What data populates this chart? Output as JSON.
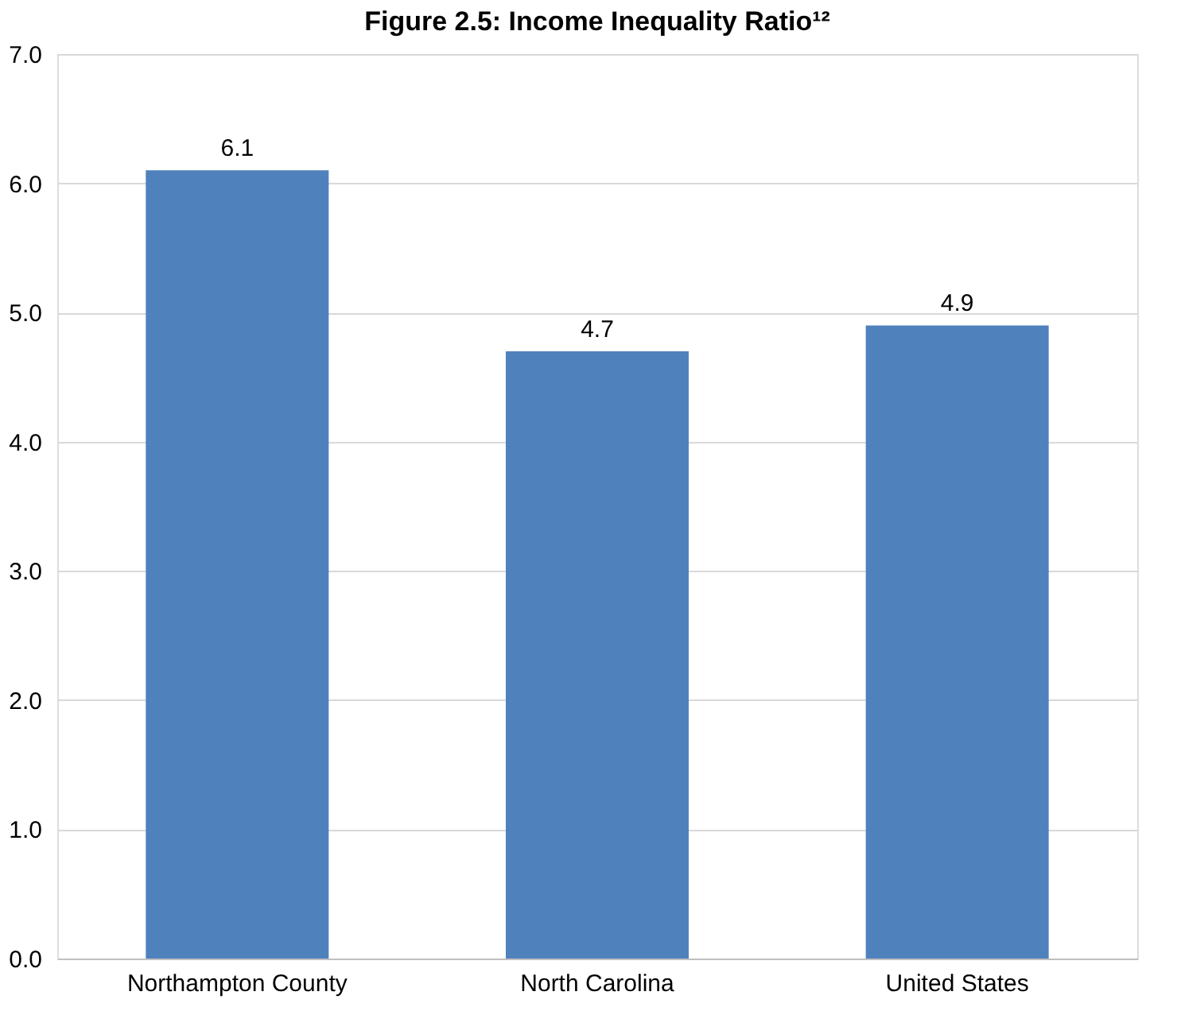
{
  "chart_data": {
    "type": "bar",
    "title": "Figure 2.5: Income Inequality Ratio¹²",
    "categories": [
      "Northampton County",
      "North Carolina",
      "United States"
    ],
    "values": [
      6.1,
      4.7,
      4.9
    ],
    "color": "#4f81bd",
    "ylim": [
      0,
      7
    ],
    "yticks": [
      {
        "value": 0,
        "label": "0.0"
      },
      {
        "value": 1,
        "label": "1.0"
      },
      {
        "value": 2,
        "label": "2.0"
      },
      {
        "value": 3,
        "label": "3.0"
      },
      {
        "value": 4,
        "label": "4.0"
      },
      {
        "value": 5,
        "label": "5.0"
      },
      {
        "value": 6,
        "label": "6.0"
      },
      {
        "value": 7,
        "label": "7.0"
      }
    ],
    "grid": "y",
    "data_labels": true
  }
}
